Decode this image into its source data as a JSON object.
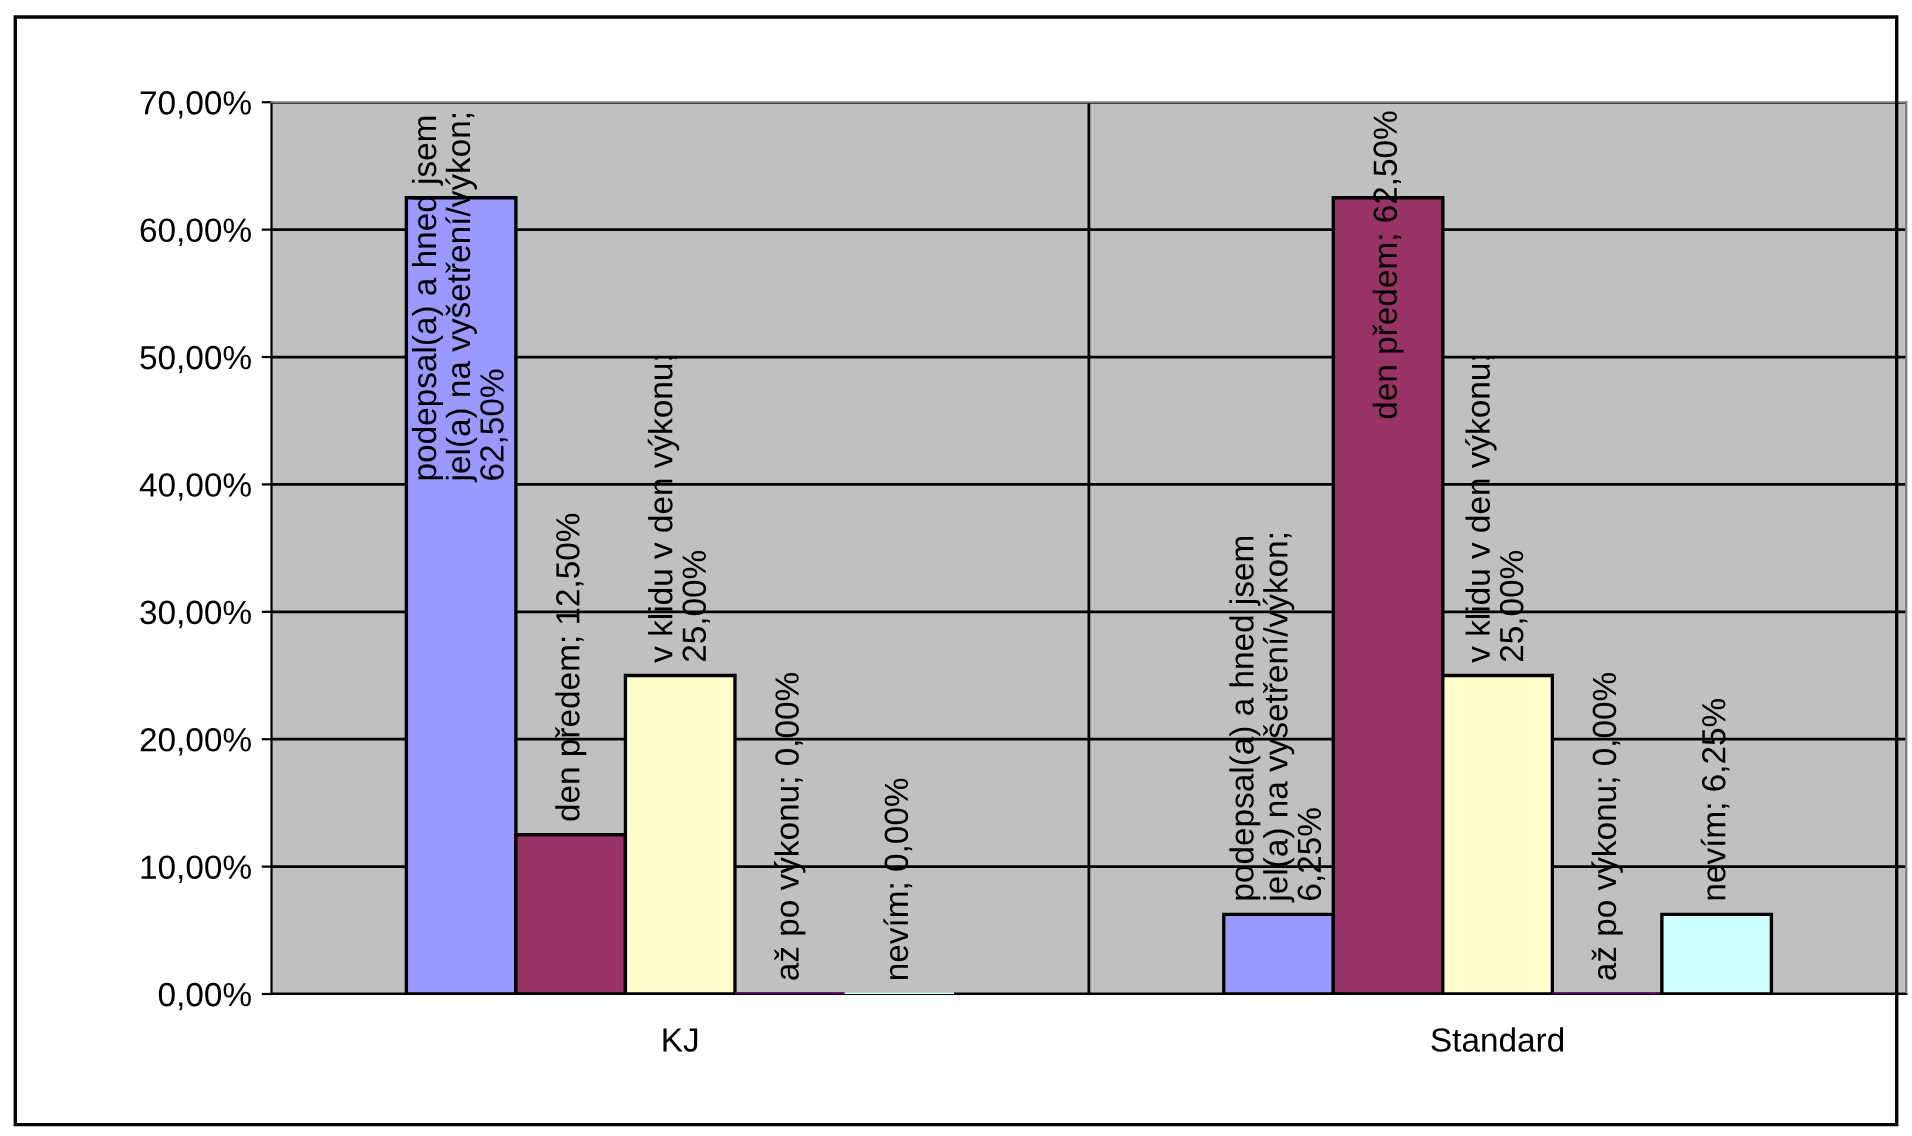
{
  "chart_data": {
    "type": "bar",
    "categories": [
      "KJ",
      "Standard"
    ],
    "series": [
      {
        "color": "#9999ff",
        "values": [
          62.5,
          6.25
        ],
        "value_labels": [
          "podepsal(a) a hned jsem jel(a) na vyšetření/výkon; 62,50%",
          "podepsal(a) a hned jsem jel(a) na vyšetření/výkon; 6,25%"
        ]
      },
      {
        "color": "#993366",
        "values": [
          12.5,
          62.5
        ],
        "value_labels": [
          "den předem; 12,50%",
          "den předem; 62,50%"
        ]
      },
      {
        "color": "#ffffcc",
        "values": [
          25,
          25
        ],
        "value_labels": [
          "v klidu v den výkonu; 25,00%",
          "v klidu v den výkonu; 25,00%"
        ]
      },
      {
        "color": "#660066",
        "values": [
          0,
          0
        ],
        "value_labels": [
          "až po výkonu; 0,00%",
          "až po výkonu; 0,00%"
        ]
      },
      {
        "color": "#ccffff",
        "values": [
          0,
          6.25
        ],
        "value_labels": [
          "nevím; 0,00%",
          "nevím; 6,25%"
        ]
      }
    ],
    "ylim": [
      0,
      70
    ],
    "yticks": [
      {
        "value": 0,
        "label": "0,00%"
      },
      {
        "value": 10,
        "label": "10,00%"
      },
      {
        "value": 20,
        "label": "20,00%"
      },
      {
        "value": 30,
        "label": "30,00%"
      },
      {
        "value": 40,
        "label": "40,00%"
      },
      {
        "value": 50,
        "label": "50,00%"
      },
      {
        "value": 60,
        "label": "60,00%"
      },
      {
        "value": 70,
        "label": "70,00%"
      }
    ],
    "grid": true,
    "legend": false
  }
}
